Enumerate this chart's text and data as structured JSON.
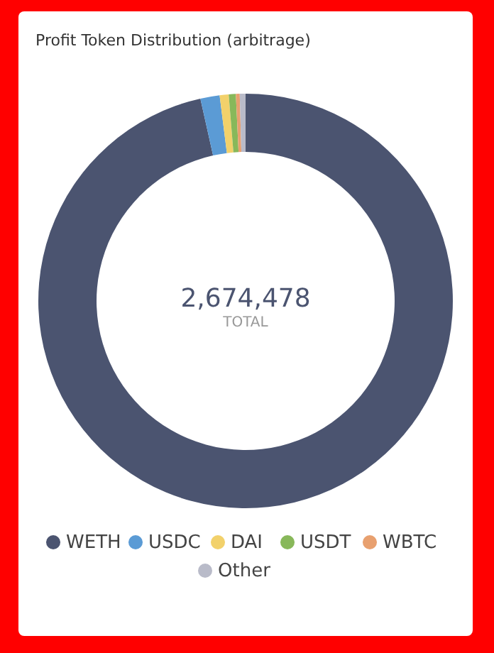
{
  "chart_data": {
    "type": "donut",
    "title": "Profit Token Distribution (arbitrage)",
    "annotations": [
      "2,674,478",
      "TOTAL"
    ],
    "categories": [
      "WETH",
      "USDC",
      "DAI",
      "USDT",
      "WBTC",
      "Other"
    ],
    "values": [
      96.5,
      1.5,
      0.7,
      0.55,
      0.3,
      0.45
    ],
    "colors": [
      "#4b5470",
      "#5b9bd5",
      "#f2d16b",
      "#88b85a",
      "#e8a06f",
      "#b9bbc9"
    ],
    "legend": "bottom"
  }
}
